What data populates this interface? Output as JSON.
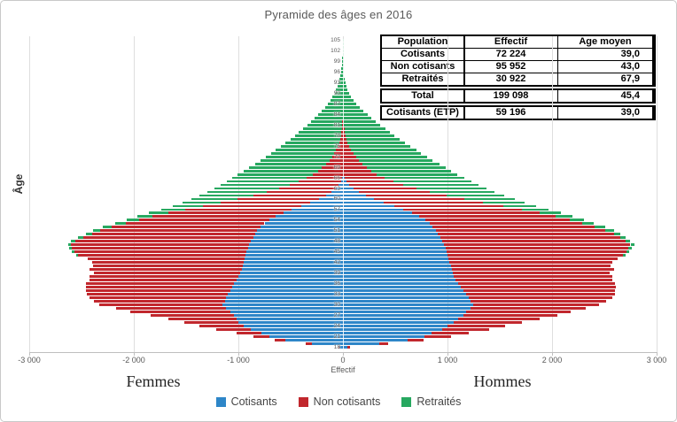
{
  "header": {
    "title": "Pyramide des âges en 2016"
  },
  "table": {
    "headers": [
      "Population",
      "Effectif",
      "Age moyen"
    ],
    "rows": [
      {
        "cells": [
          "Cotisants",
          "72 224",
          "39,0"
        ]
      },
      {
        "cells": [
          "Non cotisants",
          "95 952",
          "43,0"
        ]
      },
      {
        "cells": [
          "Retraités",
          "30 922",
          "67,9"
        ]
      }
    ],
    "total_row": {
      "cells": [
        "Total",
        "199 098",
        "45,4"
      ]
    },
    "etp_row": {
      "cells": [
        "Cotisants (ETP)",
        "59 196",
        "39,0"
      ]
    }
  },
  "chart_data": {
    "type": "bar",
    "subtype": "population-pyramid",
    "title": "Pyramide des âges en 2016",
    "xlabel": "Effectif",
    "ylabel": "Âge",
    "left_label": "Femmes",
    "right_label": "Hommes",
    "xlim": [
      -3000,
      3000
    ],
    "x_ticks": [
      -3000,
      -2000,
      -1000,
      0,
      1000,
      2000,
      3000
    ],
    "x_tick_labels": [
      "-3 000",
      "-2 000",
      "-1 000",
      "0",
      "1 000",
      "2 000",
      "3 000"
    ],
    "age_min": 18,
    "age_max": 105,
    "age_ticks": [
      105,
      102,
      99,
      96,
      93,
      90,
      87,
      84,
      81,
      78,
      75,
      72,
      69,
      66,
      63,
      60,
      57,
      54,
      51,
      48,
      45,
      42,
      39,
      36,
      33,
      30,
      27,
      24,
      21,
      18
    ],
    "grid": true,
    "legend_position": "bottom",
    "series": [
      {
        "name": "Cotisants",
        "color": "#2E86C8",
        "femmes": [
          30,
          300,
          550,
          700,
          780,
          880,
          950,
          1000,
          1020,
          1040,
          1080,
          1120,
          1150,
          1130,
          1120,
          1100,
          1080,
          1060,
          1040,
          1020,
          1000,
          980,
          970,
          960,
          950,
          940,
          930,
          920,
          910,
          900,
          880,
          860,
          840,
          820,
          790,
          750,
          700,
          640,
          570,
          490,
          400,
          310,
          230,
          160,
          110,
          70,
          40,
          20,
          10,
          0,
          0,
          0,
          0,
          0,
          0,
          0,
          0,
          0,
          0,
          0,
          0,
          0,
          0,
          0,
          0,
          0,
          0,
          0,
          0,
          0,
          0,
          0,
          0,
          0,
          0,
          0,
          0,
          0,
          0,
          0,
          0,
          0,
          0,
          0,
          0,
          0,
          0,
          0
        ],
        "hommes": [
          40,
          350,
          620,
          780,
          850,
          950,
          1000,
          1060,
          1100,
          1150,
          1180,
          1220,
          1245,
          1220,
          1200,
          1180,
          1150,
          1130,
          1100,
          1080,
          1060,
          1050,
          1040,
          1030,
          1020,
          1010,
          1000,
          990,
          980,
          970,
          950,
          930,
          910,
          890,
          860,
          830,
          790,
          730,
          660,
          580,
          490,
          390,
          300,
          220,
          150,
          100,
          60,
          30,
          15,
          0,
          0,
          0,
          0,
          0,
          0,
          0,
          0,
          0,
          0,
          0,
          0,
          0,
          0,
          0,
          0,
          0,
          0,
          0,
          0,
          0,
          0,
          0,
          0,
          0,
          0,
          0,
          0,
          0,
          0,
          0,
          0,
          0,
          0,
          0,
          0,
          0,
          0,
          0
        ]
      },
      {
        "name": "Non cotisants",
        "color": "#C1272D",
        "femmes": [
          10,
          60,
          100,
          160,
          240,
          330,
          420,
          520,
          650,
          800,
          950,
          1050,
          1180,
          1250,
          1300,
          1350,
          1380,
          1400,
          1420,
          1400,
          1420,
          1400,
          1450,
          1430,
          1450,
          1500,
          1600,
          1650,
          1680,
          1700,
          1680,
          1620,
          1560,
          1500,
          1420,
          1330,
          1250,
          1180,
          1100,
          1020,
          940,
          860,
          780,
          700,
          620,
          540,
          470,
          400,
          340,
          290,
          240,
          200,
          160,
          130,
          105,
          85,
          65,
          50,
          38,
          28,
          20,
          15,
          10,
          7,
          5,
          3,
          2,
          0,
          0,
          0,
          0,
          0,
          0,
          0,
          0,
          0,
          0,
          0,
          0,
          0,
          0,
          0,
          0,
          0,
          0,
          0,
          0,
          0
        ],
        "hommes": [
          30,
          80,
          150,
          250,
          350,
          450,
          550,
          650,
          780,
          900,
          1000,
          1100,
          1200,
          1300,
          1380,
          1420,
          1450,
          1480,
          1500,
          1500,
          1520,
          1500,
          1550,
          1530,
          1560,
          1620,
          1680,
          1720,
          1750,
          1780,
          1750,
          1720,
          1680,
          1620,
          1550,
          1460,
          1380,
          1300,
          1220,
          1130,
          1040,
          950,
          860,
          770,
          680,
          600,
          520,
          450,
          380,
          320,
          270,
          230,
          190,
          155,
          125,
          100,
          80,
          60,
          45,
          34,
          25,
          18,
          13,
          9,
          6,
          4,
          3,
          0,
          0,
          0,
          0,
          0,
          0,
          0,
          0,
          0,
          0,
          0,
          0,
          0,
          0,
          0,
          0,
          0,
          0,
          0,
          0,
          0
        ]
      },
      {
        "name": "Retraités",
        "color": "#27A860",
        "femmes": [
          0,
          0,
          0,
          0,
          0,
          0,
          0,
          0,
          0,
          0,
          0,
          0,
          0,
          0,
          0,
          0,
          0,
          0,
          0,
          0,
          0,
          0,
          0,
          0,
          0,
          0,
          20,
          20,
          25,
          30,
          40,
          50,
          60,
          70,
          85,
          100,
          120,
          150,
          185,
          230,
          290,
          360,
          440,
          510,
          570,
          620,
          660,
          690,
          710,
          715,
          710,
          695,
          675,
          655,
          630,
          605,
          575,
          545,
          510,
          475,
          440,
          405,
          370,
          335,
          300,
          265,
          232,
          200,
          170,
          143,
          119,
          98,
          80,
          64,
          51,
          40,
          31,
          24,
          18,
          13,
          10,
          7,
          5,
          4,
          3,
          2,
          1,
          1
        ],
        "hommes": [
          0,
          0,
          0,
          0,
          0,
          0,
          0,
          0,
          0,
          0,
          0,
          0,
          0,
          0,
          0,
          0,
          0,
          0,
          0,
          0,
          0,
          0,
          0,
          0,
          0,
          0,
          20,
          25,
          30,
          35,
          45,
          55,
          65,
          80,
          95,
          110,
          135,
          165,
          205,
          255,
          320,
          400,
          480,
          555,
          620,
          675,
          720,
          750,
          770,
          775,
          765,
          750,
          730,
          705,
          680,
          650,
          620,
          585,
          550,
          510,
          470,
          430,
          390,
          350,
          310,
          270,
          232,
          196,
          162,
          131,
          103,
          79,
          60,
          45,
          33,
          24,
          17,
          12,
          8,
          5,
          3,
          2,
          1,
          1,
          0,
          0,
          0,
          0
        ]
      }
    ]
  }
}
